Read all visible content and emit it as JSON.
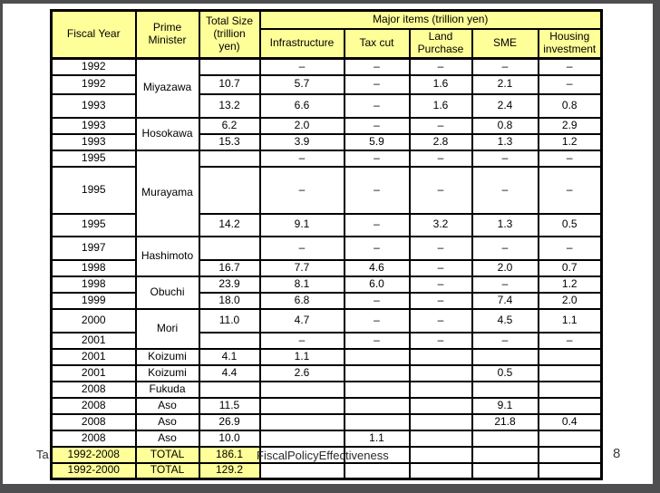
{
  "slide": {
    "caption_fragment_left": "Ta",
    "caption_fragment_main": "FiscalPolicyEffectiveness",
    "page_number": "8"
  },
  "colors": {
    "header_bg": "#FFFF99",
    "total_row_bg": "#FFFF99",
    "table_border": "#000000",
    "viewer_frame": "#4e4e50"
  },
  "table": {
    "header": {
      "fiscal_year": "Fiscal Year",
      "prime_minister": "Prime Minister",
      "total_size": "Total Size (trillion yen)",
      "major_items": "Major items (trillion yen)",
      "items": [
        "Infrastructure",
        "Tax cut",
        "Land Purchase",
        "SME",
        "Housing investment"
      ]
    },
    "rows": [
      {
        "year": "1992",
        "pm": "Miyazawa",
        "pm_span": 3,
        "total": "",
        "items": [
          "–",
          "–",
          "–",
          "–",
          "–"
        ]
      },
      {
        "year": "1992",
        "total": "10.7",
        "items": [
          "5.7",
          "–",
          "1.6",
          "2.1",
          "–"
        ]
      },
      {
        "year": "1993",
        "total": "13.2",
        "items": [
          "6.6",
          "–",
          "1.6",
          "2.4",
          "0.8"
        ]
      },
      {
        "year": "1993",
        "pm": "Hosokawa",
        "pm_span": 2,
        "total": "6.2",
        "items": [
          "2.0",
          "–",
          "–",
          "0.8",
          "2.9"
        ]
      },
      {
        "year": "1993",
        "total": "15.3",
        "items": [
          "3.9",
          "5.9",
          "2.8",
          "1.3",
          "1.2"
        ]
      },
      {
        "year": "1995",
        "pm": "Murayama",
        "pm_span": 3,
        "total": "",
        "items": [
          "–",
          "–",
          "–",
          "–",
          "–"
        ]
      },
      {
        "year": "1995",
        "total": "",
        "items": [
          "–",
          "–",
          "–",
          "–",
          "–"
        ]
      },
      {
        "year": "1995",
        "total": "14.2",
        "items": [
          "9.1",
          "–",
          "3.2",
          "1.3",
          "0.5"
        ]
      },
      {
        "year": "1997",
        "pm": "Hashimoto",
        "pm_span": 2,
        "total": "",
        "items": [
          "–",
          "–",
          "–",
          "–",
          "–"
        ]
      },
      {
        "year": "1998",
        "total": "16.7",
        "items": [
          "7.7",
          "4.6",
          "–",
          "2.0",
          "0.7"
        ]
      },
      {
        "year": "1998",
        "pm": "Obuchi",
        "pm_span": 2,
        "total": "23.9",
        "items": [
          "8.1",
          "6.0",
          "–",
          "–",
          "1.2"
        ]
      },
      {
        "year": "1999",
        "total": "18.0",
        "items": [
          "6.8",
          "–",
          "–",
          "7.4",
          "2.0"
        ]
      },
      {
        "year": "2000",
        "pm": "Mori",
        "pm_span": 2,
        "total": "11.0",
        "items": [
          "4.7",
          "–",
          "–",
          "4.5",
          "1.1"
        ]
      },
      {
        "year": "2001",
        "total": "",
        "items": [
          "–",
          "–",
          "–",
          "–",
          "–"
        ]
      },
      {
        "year": "2001",
        "pm": "Koizumi",
        "pm_span": 1,
        "total": "4.1",
        "items": [
          "1.1",
          "",
          "",
          "",
          ""
        ]
      },
      {
        "year": "2001",
        "pm": "Koizumi",
        "pm_span": 1,
        "total": "4.4",
        "items": [
          "2.6",
          "",
          "",
          "0.5",
          ""
        ]
      },
      {
        "year": "2008",
        "pm": "Fukuda",
        "pm_span": 1,
        "total": "",
        "items": [
          "",
          "",
          "",
          "",
          ""
        ]
      },
      {
        "year": "2008",
        "pm": "Aso",
        "pm_span": 1,
        "total": "11.5",
        "items": [
          "",
          "",
          "",
          "9.1",
          ""
        ]
      },
      {
        "year": "2008",
        "pm": "Aso",
        "pm_span": 1,
        "total": "26.9",
        "items": [
          "",
          "",
          "",
          "21.8",
          "0.4"
        ]
      },
      {
        "year": "2008",
        "pm": "Aso",
        "pm_span": 1,
        "total": "10.0",
        "items": [
          "",
          "1.1",
          "",
          "",
          ""
        ]
      },
      {
        "year": "1992-2008",
        "pm": "TOTAL",
        "pm_span": 1,
        "total": "186.1",
        "items": [
          "",
          "",
          "",
          "",
          ""
        ],
        "highlight": true
      },
      {
        "year": "1992-2000",
        "pm": "TOTAL",
        "pm_span": 1,
        "total": "129.2",
        "items": [
          "",
          "",
          "",
          "",
          ""
        ],
        "highlight": true
      }
    ]
  }
}
